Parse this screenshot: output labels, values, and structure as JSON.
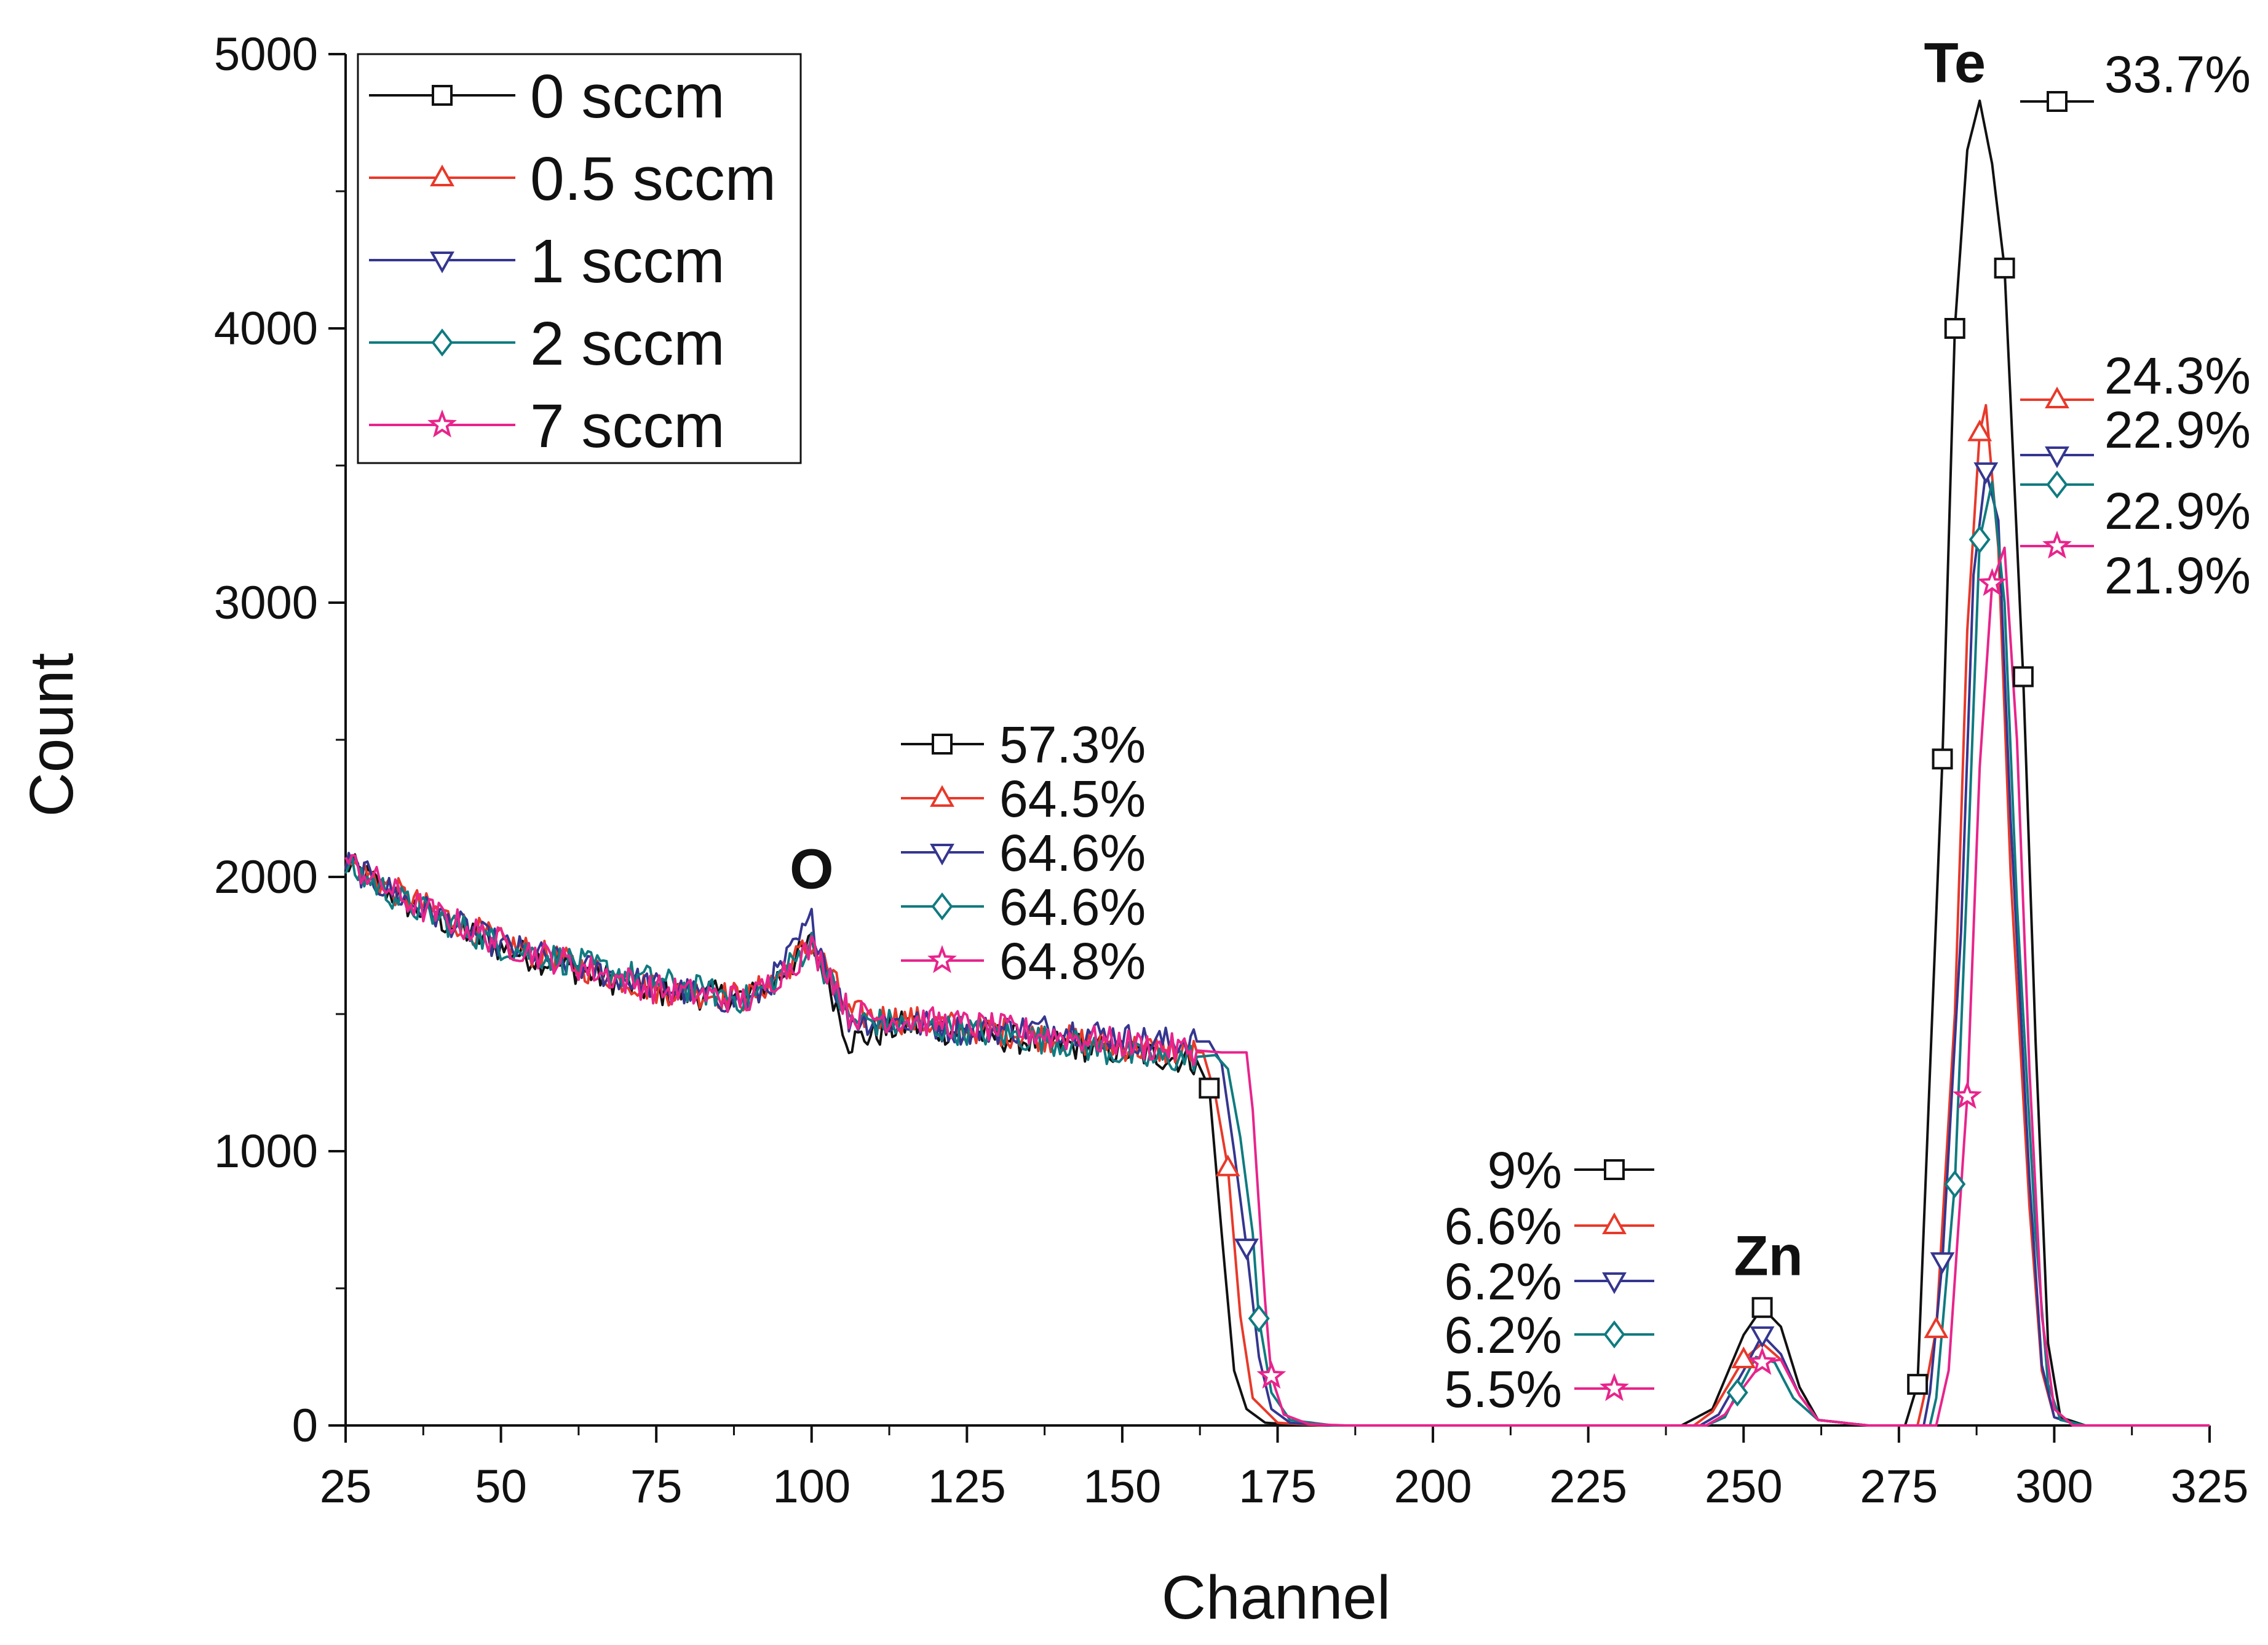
{
  "chart_data": {
    "type": "line",
    "title": "",
    "xlabel": "Channel",
    "ylabel": "Count",
    "xlim": [
      25,
      325
    ],
    "ylim": [
      0,
      5000
    ],
    "x_ticks": [
      25,
      50,
      75,
      100,
      125,
      150,
      175,
      200,
      225,
      250,
      275,
      300,
      325
    ],
    "y_ticks": [
      0,
      1000,
      2000,
      3000,
      4000,
      5000
    ],
    "grid": false,
    "legend_position": "top-left",
    "series": [
      {
        "name": "0 sccm",
        "color": "#111111",
        "marker": "square",
        "points": [
          [
            25,
            2050
          ],
          [
            35,
            1900
          ],
          [
            50,
            1740
          ],
          [
            75,
            1580
          ],
          [
            90,
            1560
          ],
          [
            95,
            1640
          ],
          [
            100,
            1760
          ],
          [
            103,
            1600
          ],
          [
            106,
            1400
          ],
          [
            115,
            1460
          ],
          [
            125,
            1430
          ],
          [
            140,
            1390
          ],
          [
            155,
            1350
          ],
          [
            162,
            1330
          ],
          [
            164,
            1230
          ],
          [
            166,
            700
          ],
          [
            168,
            200
          ],
          [
            170,
            60
          ],
          [
            173,
            10
          ],
          [
            180,
            0
          ],
          [
            240,
            0
          ],
          [
            245,
            60
          ],
          [
            250,
            330
          ],
          [
            253,
            430
          ],
          [
            256,
            360
          ],
          [
            259,
            140
          ],
          [
            262,
            20
          ],
          [
            270,
            0
          ],
          [
            276,
            0
          ],
          [
            278,
            150
          ],
          [
            282,
            2430
          ],
          [
            284,
            4000
          ],
          [
            286,
            4650
          ],
          [
            288,
            4830
          ],
          [
            290,
            4600
          ],
          [
            292,
            4220
          ],
          [
            295,
            2730
          ],
          [
            297,
            1400
          ],
          [
            299,
            300
          ],
          [
            301,
            30
          ],
          [
            305,
            0
          ],
          [
            325,
            0
          ]
        ],
        "marker_points": [
          [
            164,
            1230
          ],
          [
            253,
            430
          ],
          [
            278,
            150
          ],
          [
            282,
            2430
          ],
          [
            284,
            4000
          ],
          [
            292,
            4220
          ],
          [
            295,
            2730
          ]
        ]
      },
      {
        "name": "0.5 sccm",
        "color": "#e8392a",
        "marker": "triangle-up",
        "points": [
          [
            25,
            2060
          ],
          [
            35,
            1920
          ],
          [
            50,
            1760
          ],
          [
            75,
            1590
          ],
          [
            90,
            1560
          ],
          [
            95,
            1650
          ],
          [
            100,
            1760
          ],
          [
            103,
            1650
          ],
          [
            106,
            1500
          ],
          [
            115,
            1480
          ],
          [
            125,
            1450
          ],
          [
            140,
            1410
          ],
          [
            155,
            1370
          ],
          [
            163,
            1360
          ],
          [
            165,
            1200
          ],
          [
            167,
            940
          ],
          [
            169,
            400
          ],
          [
            171,
            100
          ],
          [
            175,
            10
          ],
          [
            182,
            0
          ],
          [
            242,
            0
          ],
          [
            245,
            50
          ],
          [
            250,
            240
          ],
          [
            253,
            300
          ],
          [
            256,
            240
          ],
          [
            259,
            110
          ],
          [
            262,
            20
          ],
          [
            270,
            0
          ],
          [
            278,
            0
          ],
          [
            279,
            100
          ],
          [
            281,
            350
          ],
          [
            284,
            1500
          ],
          [
            286,
            2900
          ],
          [
            288,
            3620
          ],
          [
            289,
            3720
          ],
          [
            291,
            3200
          ],
          [
            293,
            2000
          ],
          [
            296,
            800
          ],
          [
            298,
            200
          ],
          [
            300,
            30
          ],
          [
            304,
            0
          ],
          [
            325,
            0
          ]
        ],
        "marker_points": [
          [
            167,
            940
          ],
          [
            250,
            240
          ],
          [
            281,
            350
          ],
          [
            288,
            3620
          ]
        ]
      },
      {
        "name": "1 sccm",
        "color": "#35368f",
        "marker": "triangle-down",
        "points": [
          [
            25,
            2050
          ],
          [
            35,
            1910
          ],
          [
            50,
            1750
          ],
          [
            75,
            1600
          ],
          [
            90,
            1540
          ],
          [
            95,
            1660
          ],
          [
            100,
            1840
          ],
          [
            103,
            1640
          ],
          [
            106,
            1480
          ],
          [
            115,
            1470
          ],
          [
            125,
            1440
          ],
          [
            140,
            1450
          ],
          [
            155,
            1400
          ],
          [
            164,
            1400
          ],
          [
            166,
            1320
          ],
          [
            168,
            1000
          ],
          [
            170,
            650
          ],
          [
            172,
            250
          ],
          [
            174,
            60
          ],
          [
            177,
            10
          ],
          [
            183,
            0
          ],
          [
            243,
            0
          ],
          [
            246,
            40
          ],
          [
            250,
            200
          ],
          [
            253,
            330
          ],
          [
            256,
            260
          ],
          [
            259,
            110
          ],
          [
            262,
            20
          ],
          [
            270,
            0
          ],
          [
            279,
            0
          ],
          [
            280,
            120
          ],
          [
            282,
            600
          ],
          [
            285,
            1800
          ],
          [
            287,
            3100
          ],
          [
            289,
            3480
          ],
          [
            291,
            3300
          ],
          [
            293,
            2200
          ],
          [
            296,
            900
          ],
          [
            298,
            220
          ],
          [
            300,
            30
          ],
          [
            304,
            0
          ],
          [
            325,
            0
          ]
        ],
        "marker_points": [
          [
            170,
            650
          ],
          [
            253,
            330
          ],
          [
            282,
            600
          ],
          [
            289,
            3480
          ]
        ]
      },
      {
        "name": "2 sccm",
        "color": "#0f7b80",
        "marker": "diamond",
        "points": [
          [
            25,
            2040
          ],
          [
            35,
            1900
          ],
          [
            50,
            1750
          ],
          [
            75,
            1620
          ],
          [
            90,
            1550
          ],
          [
            95,
            1640
          ],
          [
            100,
            1760
          ],
          [
            103,
            1620
          ],
          [
            106,
            1480
          ],
          [
            115,
            1460
          ],
          [
            125,
            1440
          ],
          [
            140,
            1400
          ],
          [
            155,
            1330
          ],
          [
            165,
            1350
          ],
          [
            167,
            1300
          ],
          [
            169,
            1050
          ],
          [
            171,
            700
          ],
          [
            172,
            390
          ],
          [
            174,
            120
          ],
          [
            177,
            20
          ],
          [
            184,
            0
          ],
          [
            244,
            0
          ],
          [
            247,
            30
          ],
          [
            249,
            120
          ],
          [
            252,
            250
          ],
          [
            255,
            230
          ],
          [
            258,
            100
          ],
          [
            262,
            20
          ],
          [
            270,
            0
          ],
          [
            280,
            0
          ],
          [
            281,
            100
          ],
          [
            284,
            880
          ],
          [
            286,
            2000
          ],
          [
            288,
            3230
          ],
          [
            290,
            3440
          ],
          [
            292,
            3000
          ],
          [
            294,
            1900
          ],
          [
            297,
            700
          ],
          [
            299,
            150
          ],
          [
            301,
            20
          ],
          [
            305,
            0
          ],
          [
            325,
            0
          ]
        ],
        "marker_points": [
          [
            172,
            390
          ],
          [
            249,
            120
          ],
          [
            284,
            880
          ],
          [
            288,
            3230
          ]
        ]
      },
      {
        "name": "7 sccm",
        "color": "#e8248c",
        "marker": "star",
        "points": [
          [
            25,
            2060
          ],
          [
            35,
            1910
          ],
          [
            50,
            1760
          ],
          [
            75,
            1590
          ],
          [
            90,
            1550
          ],
          [
            95,
            1650
          ],
          [
            100,
            1740
          ],
          [
            103,
            1650
          ],
          [
            106,
            1500
          ],
          [
            115,
            1480
          ],
          [
            125,
            1460
          ],
          [
            140,
            1420
          ],
          [
            155,
            1380
          ],
          [
            166,
            1360
          ],
          [
            169,
            1360
          ],
          [
            170,
            1360
          ],
          [
            171,
            1150
          ],
          [
            172,
            800
          ],
          [
            173,
            450
          ],
          [
            174,
            180
          ],
          [
            176,
            40
          ],
          [
            180,
            5
          ],
          [
            186,
            0
          ],
          [
            244,
            0
          ],
          [
            247,
            40
          ],
          [
            250,
            140
          ],
          [
            253,
            230
          ],
          [
            256,
            240
          ],
          [
            259,
            110
          ],
          [
            262,
            20
          ],
          [
            270,
            0
          ],
          [
            281,
            0
          ],
          [
            283,
            200
          ],
          [
            286,
            1200
          ],
          [
            288,
            2400
          ],
          [
            290,
            3070
          ],
          [
            292,
            3200
          ],
          [
            294,
            2500
          ],
          [
            296,
            1300
          ],
          [
            298,
            400
          ],
          [
            300,
            60
          ],
          [
            303,
            0
          ],
          [
            325,
            0
          ]
        ],
        "marker_points": [
          [
            174,
            180
          ],
          [
            253,
            230
          ],
          [
            286,
            1200
          ],
          [
            290,
            3070
          ]
        ]
      }
    ],
    "element_labels": [
      {
        "text": "O",
        "x": 100,
        "y": 2030
      },
      {
        "text": "Zn",
        "x": 254,
        "y": 620
      },
      {
        "text": "Te",
        "x": 284,
        "y": 4970
      }
    ],
    "composition": {
      "O": [
        "57.3%",
        "64.5%",
        "64.6%",
        "64.6%",
        "64.8%"
      ],
      "Zn": [
        "9%",
        "6.6%",
        "6.2%",
        "6.2%",
        "5.5%"
      ],
      "Te": [
        "33.7%",
        "24.3%",
        "22.9%",
        "22.9%",
        "21.9%"
      ]
    }
  }
}
